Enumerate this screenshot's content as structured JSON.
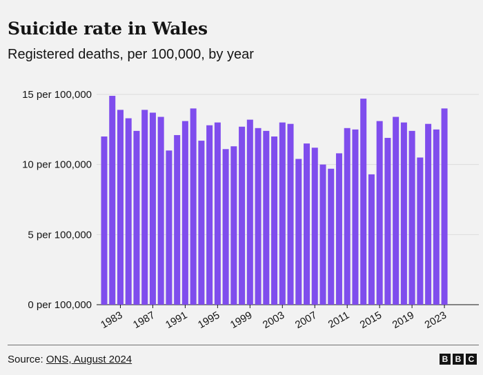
{
  "header": {
    "title": "Suicide rate in Wales",
    "subtitle": "Registered deaths, per 100,000, by year"
  },
  "footer": {
    "source_prefix": "Source: ",
    "source_link": "ONS, August 2024",
    "logo_letters": [
      "B",
      "B",
      "C"
    ]
  },
  "colors": {
    "bar": "#7f4ded",
    "background": "#f2f2f2",
    "grid": "#dcdcdc",
    "text": "#141414"
  },
  "chart_data": {
    "type": "bar",
    "title": "Suicide rate in Wales",
    "subtitle": "Registered deaths, per 100,000, by year",
    "xlabel": "",
    "ylabel": "",
    "ylim": [
      0,
      15
    ],
    "yticks": [
      0,
      5,
      10,
      15
    ],
    "ytick_labels": [
      "0 per 100,000",
      "5 per 100,000",
      "10 per 100,000",
      "15 per 100,000"
    ],
    "xtick_labels": [
      "1983",
      "1987",
      "1991",
      "1995",
      "1999",
      "2003",
      "2007",
      "2011",
      "2015",
      "2019",
      "2023"
    ],
    "grid": true,
    "categories": [
      "1981",
      "1982",
      "1983",
      "1984",
      "1985",
      "1986",
      "1987",
      "1988",
      "1989",
      "1990",
      "1991",
      "1992",
      "1993",
      "1994",
      "1995",
      "1996",
      "1997",
      "1998",
      "1999",
      "2000",
      "2001",
      "2002",
      "2003",
      "2004",
      "2005",
      "2006",
      "2007",
      "2008",
      "2009",
      "2010",
      "2011",
      "2012",
      "2013",
      "2014",
      "2015",
      "2016",
      "2017",
      "2018",
      "2019",
      "2020",
      "2021",
      "2022",
      "2023"
    ],
    "values": [
      12.0,
      14.9,
      13.9,
      13.3,
      12.4,
      13.9,
      13.7,
      13.4,
      11.0,
      12.1,
      13.1,
      14.0,
      11.7,
      12.8,
      13.0,
      11.1,
      11.3,
      12.7,
      13.2,
      12.6,
      12.4,
      12.0,
      13.0,
      12.9,
      10.4,
      11.5,
      11.2,
      10.0,
      9.7,
      10.8,
      12.6,
      12.5,
      14.7,
      9.3,
      13.1,
      11.9,
      13.4,
      13.0,
      12.4,
      10.5,
      12.9,
      12.5,
      14.0
    ]
  }
}
